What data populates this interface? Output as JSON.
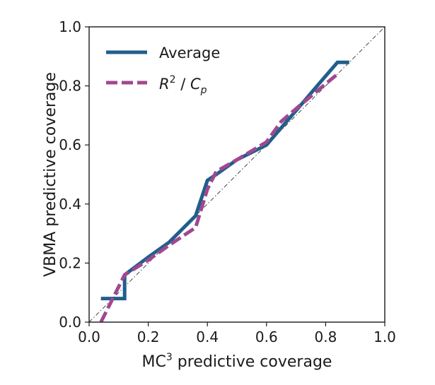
{
  "chart_data": {
    "type": "line",
    "xlabel": "MC³ predictive coverage",
    "ylabel": "VBMA predictive coverage",
    "xlim": [
      0,
      1
    ],
    "ylim": [
      0,
      1
    ],
    "xticks": [
      "0.0",
      "0.2",
      "0.4",
      "0.6",
      "0.8",
      "1.0"
    ],
    "yticks": [
      "0.0",
      "0.2",
      "0.4",
      "0.6",
      "0.8",
      "1.0"
    ],
    "grid": false,
    "legend_position": "top-left",
    "reference_line": {
      "style": "dash-dot",
      "color": "#333333",
      "points": [
        [
          0,
          0
        ],
        [
          1,
          1
        ]
      ]
    },
    "series": [
      {
        "name": "Average",
        "color": "#1f5f8b",
        "style": "solid",
        "points": [
          [
            0.04,
            0.08
          ],
          [
            0.12,
            0.08
          ],
          [
            0.12,
            0.16
          ],
          [
            0.2,
            0.22
          ],
          [
            0.27,
            0.27
          ],
          [
            0.36,
            0.36
          ],
          [
            0.4,
            0.48
          ],
          [
            0.43,
            0.5
          ],
          [
            0.5,
            0.55
          ],
          [
            0.6,
            0.6
          ],
          [
            0.66,
            0.67
          ],
          [
            0.72,
            0.74
          ],
          [
            0.78,
            0.81
          ],
          [
            0.84,
            0.88
          ],
          [
            0.88,
            0.88
          ]
        ]
      },
      {
        "name_parts": {
          "r": "R",
          "r_sup": "2",
          "sep": " / ",
          "c": "C",
          "c_sub": "p"
        },
        "color": "#a0488f",
        "style": "dashed",
        "points": [
          [
            0.04,
            0.0
          ],
          [
            0.08,
            0.08
          ],
          [
            0.12,
            0.16
          ],
          [
            0.2,
            0.21
          ],
          [
            0.27,
            0.26
          ],
          [
            0.36,
            0.32
          ],
          [
            0.4,
            0.45
          ],
          [
            0.43,
            0.51
          ],
          [
            0.5,
            0.55
          ],
          [
            0.6,
            0.61
          ],
          [
            0.65,
            0.68
          ],
          [
            0.72,
            0.74
          ],
          [
            0.78,
            0.79
          ],
          [
            0.84,
            0.84
          ]
        ]
      }
    ]
  }
}
